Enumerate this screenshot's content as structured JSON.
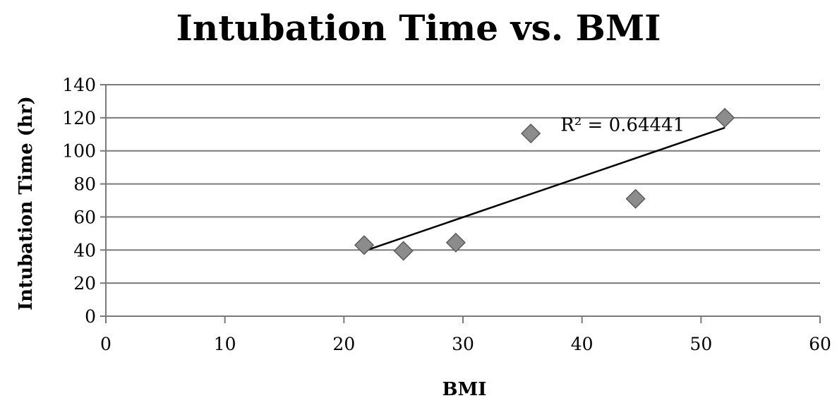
{
  "chart_data": {
    "type": "scatter",
    "title": "Intubation Time vs. BMI",
    "xlabel": "BMI",
    "ylabel": "Intubation Time (hr)",
    "xlim": [
      0,
      60
    ],
    "ylim": [
      0,
      140
    ],
    "x_ticks": [
      0,
      10,
      20,
      30,
      40,
      50,
      60
    ],
    "y_ticks": [
      0,
      20,
      40,
      60,
      80,
      100,
      120,
      140
    ],
    "grid": "horizontal",
    "marker": "diamond",
    "marker_color": "#8c8c8c",
    "points": [
      {
        "x": 21.7,
        "y": 43
      },
      {
        "x": 25.0,
        "y": 39.5
      },
      {
        "x": 29.4,
        "y": 44.5
      },
      {
        "x": 35.7,
        "y": 110.5
      },
      {
        "x": 44.5,
        "y": 71
      },
      {
        "x": 52.0,
        "y": 120
      }
    ],
    "trendline": {
      "type": "linear",
      "x_start": 21.7,
      "y_start": 39.4,
      "x_end": 52.0,
      "y_end": 114,
      "label": "R² = 0.64441"
    }
  }
}
